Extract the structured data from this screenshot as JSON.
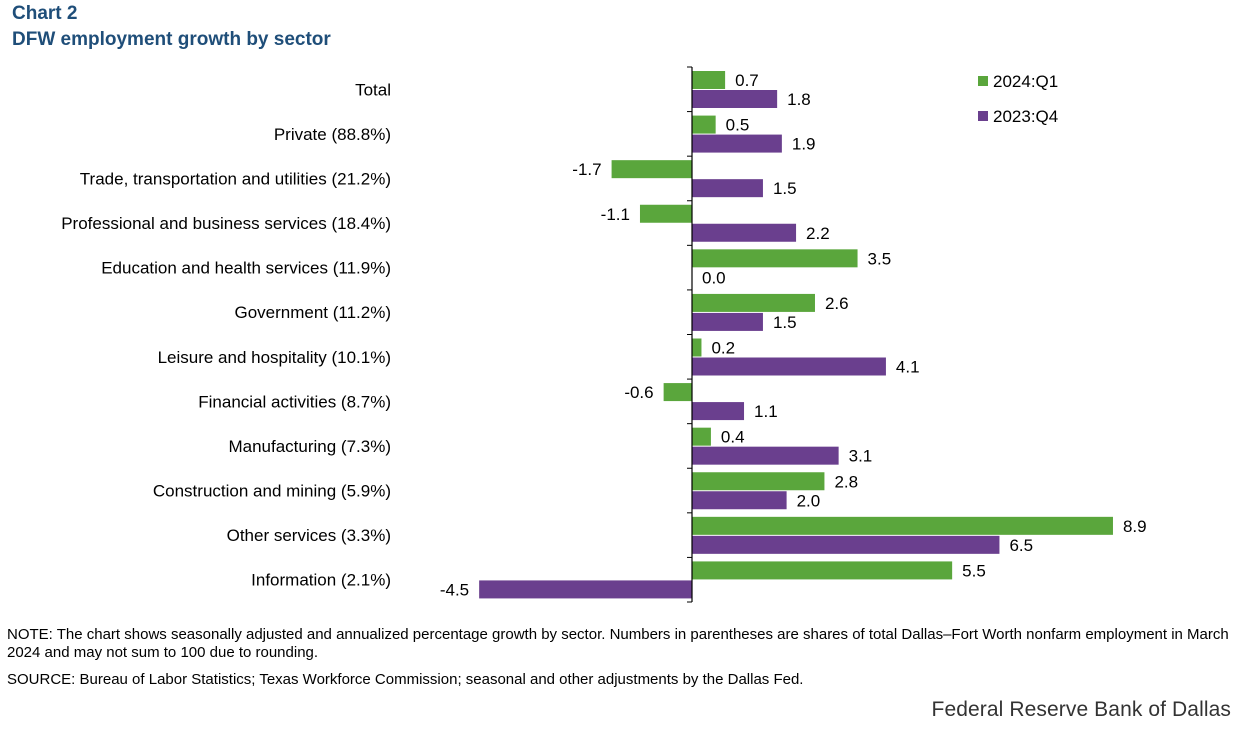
{
  "header": {
    "kicker": "Chart 2",
    "title": "DFW employment  growth by sector"
  },
  "chart_data": {
    "type": "bar",
    "orientation": "horizontal",
    "title": "DFW employment  growth by sector",
    "xlabel": "",
    "ylabel": "",
    "xlim": [
      -5,
      10
    ],
    "grid": false,
    "legend_position": "top-right",
    "categories": [
      "Total",
      "Private (88.8%)",
      "Trade, transportation and utilities (21.2%)",
      "Professional and business services (18.4%)",
      "Education and health services (11.9%)",
      "Government (11.2%)",
      "Leisure and hospitality (10.1%)",
      "Financial activities (8.7%)",
      "Manufacturing (7.3%)",
      "Construction and mining (5.9%)",
      "Other services (3.3%)",
      "Information (2.1%)"
    ],
    "series": [
      {
        "name": "2024:Q1",
        "color": "#5aa63c",
        "values": [
          0.7,
          0.5,
          -1.7,
          -1.1,
          3.5,
          2.6,
          0.2,
          -0.6,
          0.4,
          2.8,
          8.9,
          5.5
        ],
        "labels": [
          "0.7",
          "0.5",
          "-1.7",
          "-1.1",
          "3.5",
          "2.6",
          "0.2",
          "-0.6",
          "0.4",
          "2.8",
          "8.9",
          "5.5"
        ]
      },
      {
        "name": "2023:Q4",
        "color": "#6a3f8e",
        "values": [
          1.8,
          1.9,
          1.5,
          2.2,
          0.0,
          1.5,
          4.1,
          1.1,
          3.1,
          2.0,
          6.5,
          -4.5
        ],
        "labels": [
          "1.8",
          "1.9",
          "1.5",
          "2.2",
          "0.0",
          "1.5",
          "4.1",
          "1.1",
          "3.1",
          "2.0",
          "6.5",
          "-4.5"
        ]
      }
    ]
  },
  "notes": {
    "note": "NOTE: The chart shows seasonally adjusted and annualized percentage growth by sector. Numbers in parentheses are shares of total Dallas–Fort Worth nonfarm employment  in March 2024 and may not sum to 100 due to rounding.",
    "source": "SOURCE: Bureau of Labor Statistics; Texas Workforce Commission;  seasonal and other adjustments by the Dallas Fed."
  },
  "footer": {
    "brand": "Federal Reserve Bank of Dallas"
  }
}
